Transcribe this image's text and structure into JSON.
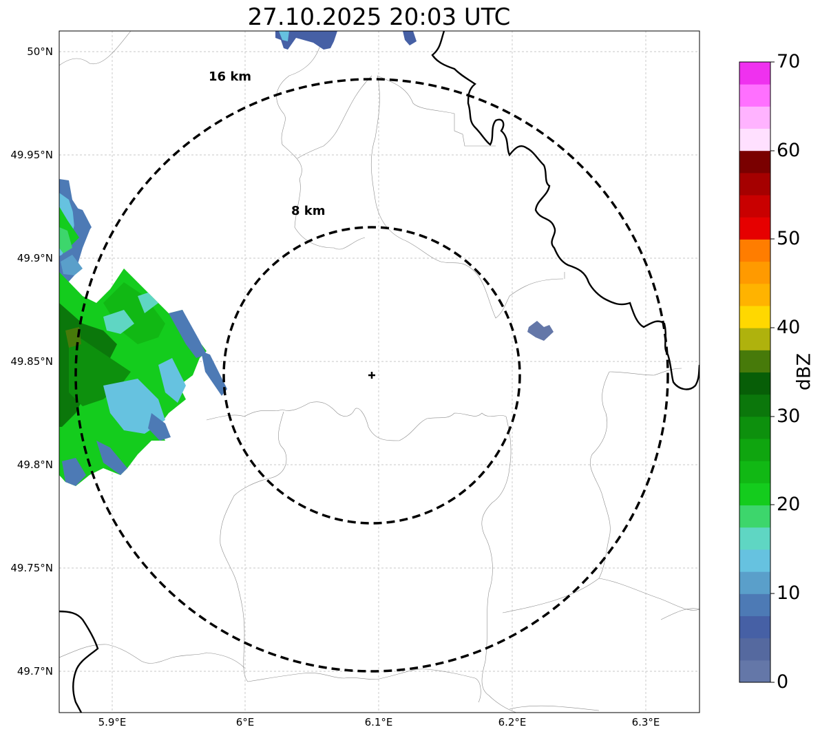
{
  "title": "27.10.2025 20:03 UTC",
  "map": {
    "lat_ticks": [
      "50°N",
      "49.95°N",
      "49.9°N",
      "49.85°N",
      "49.8°N",
      "49.75°N",
      "49.7°N"
    ],
    "lon_ticks": [
      "5.9°E",
      "6°E",
      "6.1°E",
      "6.2°E",
      "6.3°E"
    ],
    "lat_values": [
      50.0,
      49.95,
      49.9,
      49.85,
      49.8,
      49.75,
      49.7
    ],
    "lon_values": [
      5.9,
      6.0,
      6.1,
      6.2,
      6.3
    ],
    "extent": {
      "lon_min": 5.86,
      "lon_max": 6.34,
      "lat_min": 49.68,
      "lat_max": 50.01
    },
    "radar_site": {
      "lon": 6.095,
      "lat": 49.844
    },
    "rings": [
      {
        "label": "16 km",
        "radius_km": 16
      },
      {
        "label": "8 km",
        "radius_km": 8
      }
    ],
    "gridlines": true
  },
  "colorbar": {
    "unit": "dBZ",
    "min": 0,
    "max": 70,
    "tick_labels": [
      "0",
      "10",
      "20",
      "30",
      "40",
      "50",
      "60",
      "70"
    ],
    "colors": [
      "#6477a8",
      "#55699f",
      "#4660a5",
      "#4d7ab5",
      "#5a9fca",
      "#66c2e0",
      "#5fd6c3",
      "#3dd66c",
      "#14cc1d",
      "#11b814",
      "#0fa50f",
      "#0d900d",
      "#0b770b",
      "#075e07",
      "#477a0a",
      "#afb20d",
      "#ffd800",
      "#ffb300",
      "#ff9a00",
      "#ff7d00",
      "#e60000",
      "#c90000",
      "#a50000",
      "#7a0000",
      "#ffe0ff",
      "#ffb3ff",
      "#ff70ff",
      "#ef31ef"
    ]
  }
}
